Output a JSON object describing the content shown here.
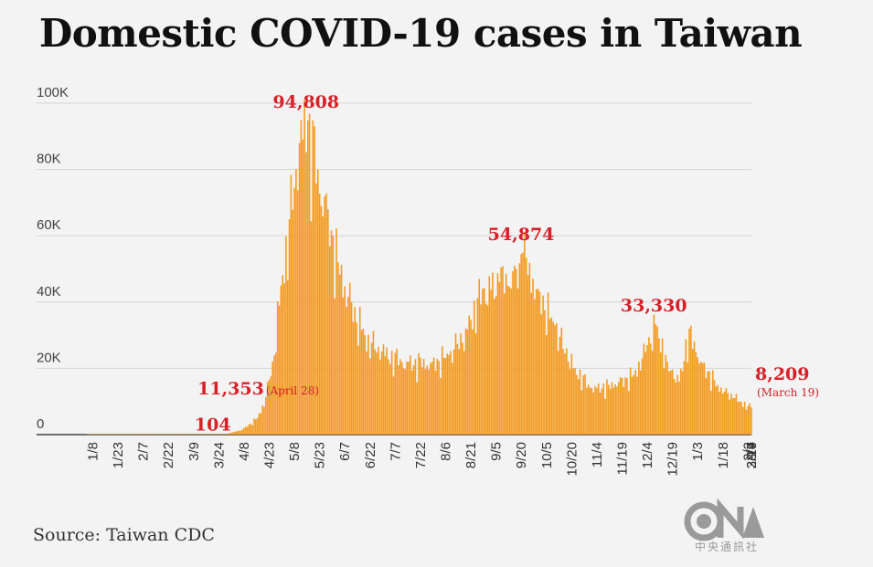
{
  "title": "Domestic COVID-19 cases in Taiwan",
  "source": "Source: Taiwan CDC",
  "logo": {
    "text": "CNA",
    "subtext": "中央通訊社"
  },
  "colors": {
    "bar": "#f39a1e",
    "annotation": "#d92027",
    "grid": "#d4d4d4",
    "axis": "#444444"
  },
  "chart_data": {
    "type": "bar",
    "title": "Domestic COVID-19 cases in Taiwan",
    "xlabel": "",
    "ylabel": "",
    "ylim": [
      0,
      100000
    ],
    "grid": true,
    "yticks": [
      {
        "value": 0,
        "label": "0"
      },
      {
        "value": 20000,
        "label": "20K"
      },
      {
        "value": 40000,
        "label": "40K"
      },
      {
        "value": 60000,
        "label": "60K"
      },
      {
        "value": 80000,
        "label": "80K"
      },
      {
        "value": 100000,
        "label": "100K"
      }
    ],
    "xtick_labels": [
      "1/8",
      "1/23",
      "2/7",
      "2/22",
      "3/9",
      "3/24",
      "4/8",
      "4/23",
      "5/8",
      "5/23",
      "6/7",
      "6/22",
      "7/7",
      "7/22",
      "8/6",
      "8/21",
      "9/5",
      "9/20",
      "10/5",
      "10/20",
      "11/4",
      "11/19",
      "12/4",
      "12/19",
      "1/3",
      "1/18",
      "2/2",
      "2/17",
      "3/4",
      "3/19"
    ],
    "series_anchors": [
      {
        "day": 0,
        "value": 30
      },
      {
        "day": 75,
        "value": 50
      },
      {
        "day": 82,
        "value": 104
      },
      {
        "day": 92,
        "value": 1500
      },
      {
        "day": 101,
        "value": 5000
      },
      {
        "day": 106,
        "value": 11353
      },
      {
        "day": 110,
        "value": 22000
      },
      {
        "day": 115,
        "value": 45000
      },
      {
        "day": 120,
        "value": 65000
      },
      {
        "day": 126,
        "value": 88000
      },
      {
        "day": 131,
        "value": 94808
      },
      {
        "day": 137,
        "value": 80000
      },
      {
        "day": 143,
        "value": 68000
      },
      {
        "day": 149,
        "value": 52000
      },
      {
        "day": 157,
        "value": 40000
      },
      {
        "day": 165,
        "value": 30000
      },
      {
        "day": 175,
        "value": 25000
      },
      {
        "day": 190,
        "value": 22000
      },
      {
        "day": 205,
        "value": 22000
      },
      {
        "day": 215,
        "value": 24000
      },
      {
        "day": 225,
        "value": 32000
      },
      {
        "day": 235,
        "value": 44000
      },
      {
        "day": 245,
        "value": 46000
      },
      {
        "day": 255,
        "value": 50000
      },
      {
        "day": 259,
        "value": 54874
      },
      {
        "day": 268,
        "value": 44000
      },
      {
        "day": 278,
        "value": 33000
      },
      {
        "day": 290,
        "value": 20000
      },
      {
        "day": 300,
        "value": 14000
      },
      {
        "day": 310,
        "value": 15000
      },
      {
        "day": 325,
        "value": 18000
      },
      {
        "day": 333,
        "value": 27000
      },
      {
        "day": 338,
        "value": 33330
      },
      {
        "day": 345,
        "value": 22000
      },
      {
        "day": 352,
        "value": 16000
      },
      {
        "day": 358,
        "value": 32000
      },
      {
        "day": 365,
        "value": 22000
      },
      {
        "day": 375,
        "value": 15000
      },
      {
        "day": 385,
        "value": 11000
      },
      {
        "day": 395,
        "value": 8209
      }
    ],
    "annotations": [
      {
        "text": "94,808",
        "day": 131,
        "value": 94808
      },
      {
        "text": "54,874",
        "day": 259,
        "value": 54874
      },
      {
        "text": "33,330",
        "day": 338,
        "value": 33330
      },
      {
        "text": "11,353",
        "sub": "(April 28)",
        "day": 106,
        "value": 11353
      },
      {
        "text": "104",
        "day": 82,
        "value": 104
      },
      {
        "text": "8,209",
        "sub": "(March 19)",
        "day": 395,
        "value": 8209
      }
    ]
  }
}
